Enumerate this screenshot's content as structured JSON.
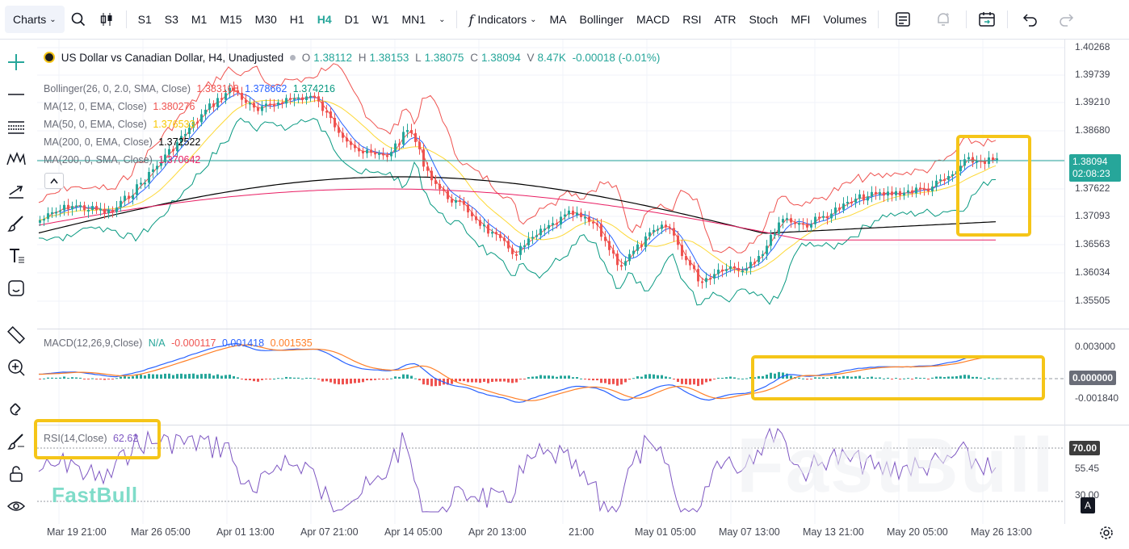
{
  "toolbar": {
    "charts_label": "Charts",
    "timeframes": [
      "S1",
      "S3",
      "M1",
      "M15",
      "M30",
      "H1",
      "H4",
      "D1",
      "W1",
      "MN1"
    ],
    "active_timeframe": "H4",
    "indicators_label": "Indicators",
    "quick_indicators": [
      "MA",
      "Bollinger",
      "MACD",
      "RSI",
      "ATR",
      "Stoch",
      "MFI",
      "Volumes"
    ]
  },
  "symbol": {
    "title": "US Dollar vs Canadian Dollar, H4, Unadjusted",
    "o_label": "O",
    "o": "1.38112",
    "h_label": "H",
    "h": "1.38153",
    "l_label": "L",
    "l": "1.38075",
    "c_label": "C",
    "c": "1.38094",
    "v_label": "V",
    "v": "8.47K",
    "change": "-0.00018 (-0.01%)"
  },
  "indicators": {
    "bollinger_name": "Bollinger(26, 0, 2.0, SMA, Close)",
    "bollinger_vals": [
      "1.383108",
      "1.378662",
      "1.374216"
    ],
    "ma12_name": "MA(12, 0, EMA, Close)",
    "ma12_val": "1.380276",
    "ma50_name": "MA(50, 0, EMA, Close)",
    "ma50_val": "1.376533",
    "ma200e_name": "MA(200, 0, EMA, Close)",
    "ma200e_val": "1.372522",
    "ma200s_name": "MA(200, 0, SMA, Close)",
    "ma200s_val": "1.370642"
  },
  "macd": {
    "name": "MACD(12,26,9,Close)",
    "na": "N/A",
    "v1": "-0.000117",
    "v2": "0.001418",
    "v3": "0.001535"
  },
  "rsi": {
    "name": "RSI(14,Close)",
    "value": "62.62"
  },
  "price_axis": [
    "1.40268",
    "1.39739",
    "1.39210",
    "1.38680",
    "1.37622",
    "1.37093",
    "1.36563",
    "1.36034",
    "1.35505"
  ],
  "current_price": "1.38094",
  "countdown": "02:08:23",
  "macd_axis": [
    "0.003000",
    "-0.001840"
  ],
  "macd_zero": "0.000000",
  "rsi_axis": [
    "55.45",
    "30.00"
  ],
  "rsi_level": "70.00",
  "watermark": "FastBull",
  "x_axis": [
    "Mar 19 21:00",
    "Mar 26 05:00",
    "Apr 01 13:00",
    "Apr 07 21:00",
    "Apr 14 05:00",
    "Apr 20 13:00",
    "21:00",
    "May 01 05:00",
    "May 07 13:00",
    "May 13 21:00",
    "May 20 05:00",
    "May 26 13:00"
  ],
  "colors": {
    "up": "#26a69a",
    "down": "#ef5350",
    "bb_upper": "#ef5350",
    "bb_mid": "#2962ff",
    "bb_lower": "#089981",
    "ma12": "#ef5350",
    "ma50": "#fdd835",
    "ma200e": "#000000",
    "ma200s": "#e91e63",
    "rsi": "#7e57c2",
    "highlight": "#f5c518"
  },
  "bottom_badge": "A"
}
